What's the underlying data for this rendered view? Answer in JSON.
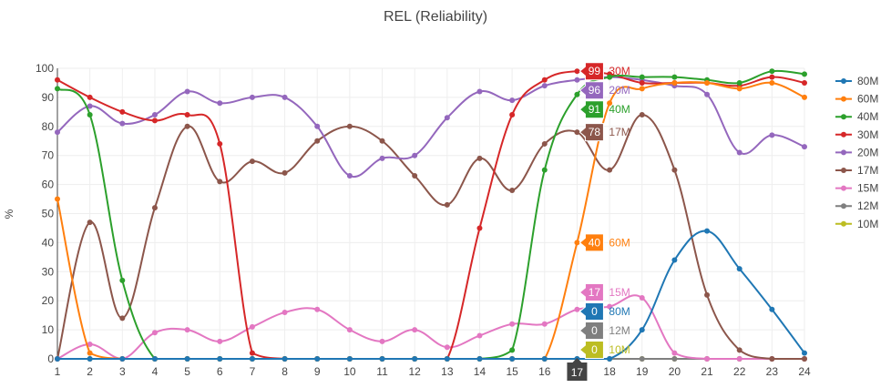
{
  "chart_data": {
    "type": "line",
    "title": "REL (Reliability)",
    "xlabel": "",
    "ylabel": "%",
    "xlim": [
      1,
      24
    ],
    "ylim": [
      0,
      100
    ],
    "x_ticks": [
      1,
      2,
      3,
      4,
      5,
      6,
      7,
      8,
      9,
      10,
      11,
      12,
      13,
      14,
      15,
      16,
      17,
      18,
      19,
      20,
      21,
      22,
      23,
      24
    ],
    "y_ticks": [
      0,
      10,
      20,
      30,
      40,
      50,
      60,
      70,
      80,
      90,
      100
    ],
    "grid": true,
    "legend_position": "right",
    "x": [
      1,
      2,
      3,
      4,
      5,
      6,
      7,
      8,
      9,
      10,
      11,
      12,
      13,
      14,
      15,
      16,
      17,
      18,
      19,
      20,
      21,
      22,
      23,
      24
    ],
    "series": [
      {
        "name": "80M",
        "color": "#1f77b4",
        "values": [
          0,
          0,
          0,
          0,
          0,
          0,
          0,
          0,
          0,
          0,
          0,
          0,
          0,
          0,
          0,
          0,
          0,
          0,
          10,
          34,
          44,
          31,
          17,
          2
        ]
      },
      {
        "name": "60M",
        "color": "#ff7f0e",
        "values": [
          55,
          2,
          0,
          0,
          0,
          0,
          0,
          0,
          0,
          0,
          0,
          0,
          0,
          0,
          0,
          0,
          40,
          88,
          93,
          95,
          95,
          93,
          95,
          90
        ]
      },
      {
        "name": "40M",
        "color": "#2ca02c",
        "values": [
          93,
          84,
          27,
          0,
          0,
          0,
          0,
          0,
          0,
          0,
          0,
          0,
          0,
          0,
          3,
          65,
          91,
          97,
          97,
          97,
          96,
          95,
          99,
          98
        ]
      },
      {
        "name": "30M",
        "color": "#d62728",
        "values": [
          96,
          90,
          85,
          82,
          84,
          74,
          2,
          0,
          0,
          0,
          0,
          0,
          0,
          45,
          84,
          96,
          99,
          98,
          95,
          95,
          95,
          94,
          97,
          95
        ]
      },
      {
        "name": "20M",
        "color": "#9467bd",
        "values": [
          78,
          87,
          81,
          84,
          92,
          88,
          90,
          90,
          80,
          63,
          69,
          70,
          83,
          92,
          89,
          94,
          96,
          97,
          96,
          94,
          91,
          71,
          77,
          73
        ]
      },
      {
        "name": "17M",
        "color": "#8c564b",
        "values": [
          0,
          47,
          14,
          52,
          80,
          61,
          68,
          64,
          75,
          80,
          75,
          63,
          53,
          69,
          58,
          74,
          78,
          65,
          84,
          65,
          22,
          3,
          0,
          0
        ]
      },
      {
        "name": "15M",
        "color": "#e377c2",
        "values": [
          0,
          5,
          0,
          9,
          10,
          6,
          11,
          16,
          17,
          10,
          6,
          10,
          4,
          8,
          12,
          12,
          17,
          18,
          21,
          2,
          0,
          0,
          0,
          0
        ]
      },
      {
        "name": "12M",
        "color": "#7f7f7f",
        "values": [
          0,
          0,
          0,
          0,
          0,
          0,
          0,
          0,
          0,
          0,
          0,
          0,
          0,
          0,
          0,
          0,
          0,
          0,
          0,
          0,
          0,
          0,
          0,
          0
        ]
      },
      {
        "name": "10M",
        "color": "#bcbd22",
        "values": [
          0,
          0,
          0,
          0,
          0,
          0,
          0,
          0,
          0,
          0,
          0,
          0,
          0,
          0,
          0,
          0,
          0,
          0,
          0,
          0,
          0,
          0,
          0,
          0
        ]
      }
    ],
    "hover": {
      "x": 17,
      "x_label": "17",
      "labels": [
        {
          "series": "30M",
          "value": 99
        },
        {
          "series": "20M",
          "value": 96
        },
        {
          "series": "40M",
          "value": 91
        },
        {
          "series": "17M",
          "value": 78
        },
        {
          "series": "60M",
          "value": 40
        },
        {
          "series": "15M",
          "value": 17
        },
        {
          "series": "80M",
          "value": 0
        },
        {
          "series": "12M",
          "value": 0
        },
        {
          "series": "10M",
          "value": 0
        }
      ]
    }
  }
}
